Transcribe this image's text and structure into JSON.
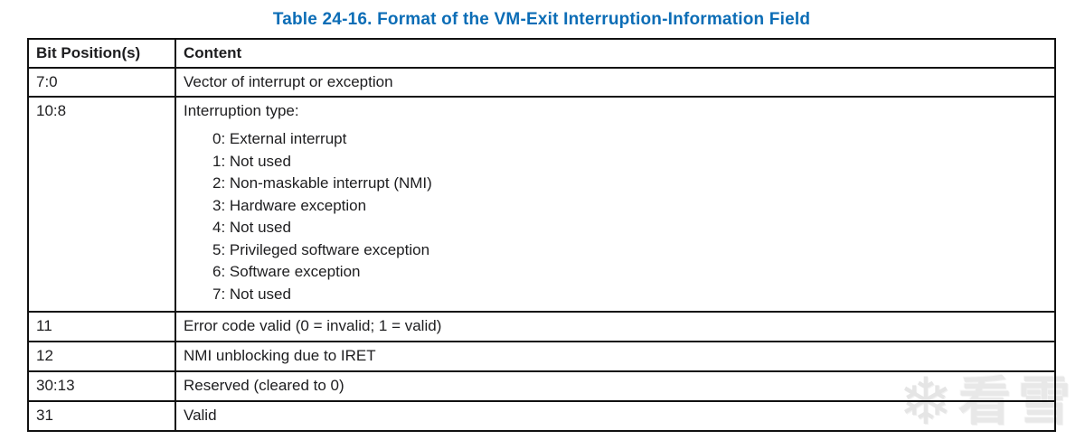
{
  "title": "Table 24-16.  Format of the VM-Exit Interruption-Information Field",
  "table": {
    "headers": [
      "Bit Position(s)",
      "Content"
    ],
    "rows": [
      {
        "bits": "7:0",
        "content": "Vector of interrupt or exception"
      },
      {
        "bits": "10:8",
        "content": "Interruption type:",
        "sub_items": [
          "0: External interrupt",
          "1: Not used",
          "2: Non-maskable interrupt (NMI)",
          "3: Hardware exception",
          "4: Not used",
          "5: Privileged software exception",
          "6: Software exception",
          "7: Not used"
        ]
      },
      {
        "bits": "11",
        "content": "Error code valid (0 = invalid; 1 = valid)"
      },
      {
        "bits": "12",
        "content": "NMI unblocking due to IRET"
      },
      {
        "bits": "30:13",
        "content": "Reserved (cleared to 0)"
      },
      {
        "bits": "31",
        "content": "Valid"
      }
    ]
  },
  "watermark": {
    "icon_name": "snowflake-icon",
    "icon_glyph": "❄",
    "text": "看雪"
  },
  "colors": {
    "title_blue": "#0c6db6",
    "border": "#111111",
    "text": "#1d1d1f",
    "watermark_gray": "#e0e0e0"
  }
}
